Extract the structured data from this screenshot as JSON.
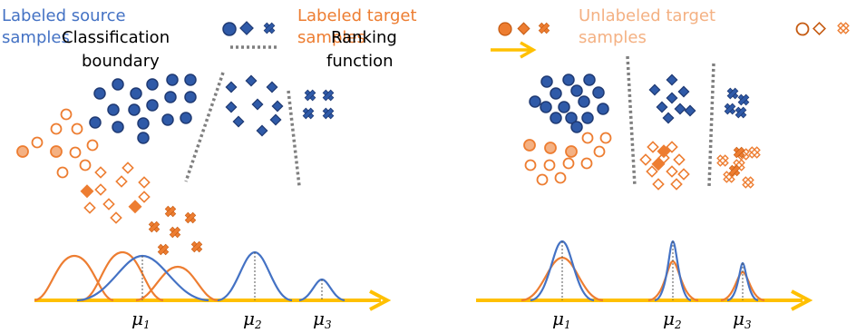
{
  "legend": {
    "labeled_source": [
      "Labeled source",
      "samples"
    ],
    "labeled_target": [
      "Labeled target",
      "samples"
    ],
    "unlabeled_target": [
      "Unlabeled target",
      "samples"
    ]
  },
  "annotations": {
    "classification_boundary": [
      "Classification",
      "boundary"
    ],
    "ranking_function": [
      "Ranking",
      "function"
    ]
  },
  "axis_labels": {
    "mu1": "μ",
    "mu1_sub": "1",
    "mu2": "μ",
    "mu2_sub": "2",
    "mu3": "μ",
    "mu3_sub": "3"
  },
  "colors": {
    "source_blue": "#2c4f9e",
    "source_blue_fill": "#2f5aa8",
    "target_orange": "#ed7d31",
    "target_orange_light": "#f4b183",
    "unlabeled_text": "#f4b183",
    "curve_blue": "#4472c4",
    "arrow_yellow": "#ffc000",
    "dotted_gray": "#7f7f7f"
  },
  "shape_legend": [
    "circle-icon",
    "diamond-icon",
    "cross-icon"
  ]
}
